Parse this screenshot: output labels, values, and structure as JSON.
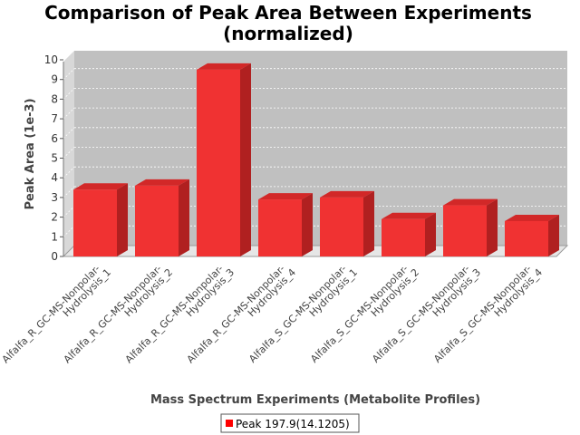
{
  "chart_data": {
    "type": "bar",
    "title": "Comparison of Peak Area Between Experiments",
    "subtitle": "(normalized)",
    "xlabel": "Mass Spectrum Experiments (Metabolite Profiles)",
    "ylabel": "Peak Area (1e-3)",
    "ylim": [
      0,
      10
    ],
    "yticks": [
      "0",
      "1",
      "2",
      "3",
      "4",
      "5",
      "6",
      "7",
      "8",
      "9",
      "10"
    ],
    "categories": [
      [
        "Alfalfa_R_GC-MS-Nonpolar-",
        "Hydrolysis_1"
      ],
      [
        "Alfalfa_R_GC-MS-Nonpolar-",
        "Hydrolysis_2"
      ],
      [
        "Alfalfa_R_GC-MS-Nonpolar-",
        "Hydrolysis_3"
      ],
      [
        "Alfalfa_R_GC-MS-Nonpolar-",
        "Hydrolysis_4"
      ],
      [
        "Alfalfa_S_GC-MS-Nonpolar-",
        "Hydrolysis_1"
      ],
      [
        "Alfalfa_S_GC-MS-Nonpolar-",
        "Hydrolysis_2"
      ],
      [
        "Alfalfa_S_GC-MS-Nonpolar-",
        "Hydrolysis_3"
      ],
      [
        "Alfalfa_S_GC-MS-Nonpolar-",
        "Hydrolysis_4"
      ]
    ],
    "series": [
      {
        "name": "Peak 197.9(14.1205)",
        "color": "#ff0000",
        "values": [
          3.4,
          3.6,
          9.5,
          2.9,
          3.0,
          1.9,
          2.6,
          1.8
        ]
      }
    ],
    "grid": true,
    "legend": "bottom",
    "colors": {
      "plot_back": "#c0c0c0",
      "plot_wall": "#d8d8d8",
      "bar_front": "#f03232",
      "bar_side": "#b02020",
      "bar_top": "#d22828"
    }
  }
}
